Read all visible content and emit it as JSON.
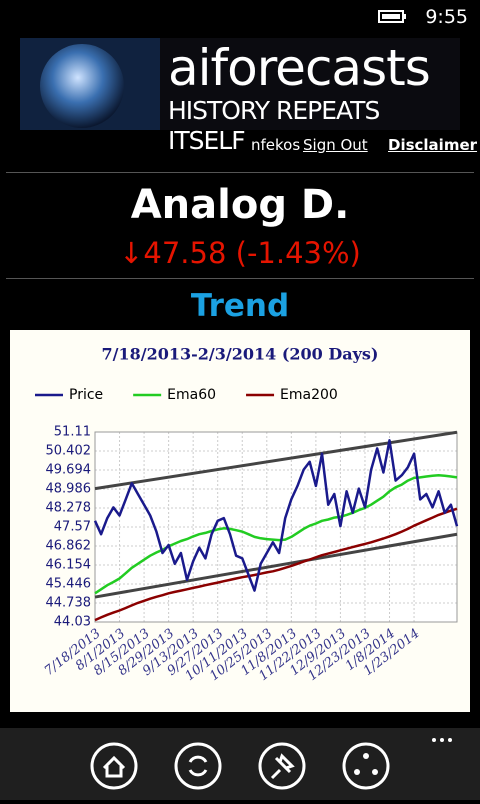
{
  "status_bar": {
    "time": "9:55"
  },
  "header": {
    "brand": "aiforecasts",
    "tagline": "HISTORY REPEATS ITSELF",
    "user": "nfekos",
    "sign_out": "Sign Out",
    "disclaimer": "Disclaimer"
  },
  "quote": {
    "name": "Analog D.",
    "change": "↓47.58 (-1.43%)"
  },
  "section": {
    "title": "Trend"
  },
  "chart_data": {
    "type": "line",
    "title": "7/18/2013-2/3/2014 (200 Days)",
    "categories": [
      "7/18/2013",
      null,
      null,
      null,
      "8/1/2013",
      null,
      null,
      null,
      "8/15/2013",
      null,
      null,
      null,
      "8/29/2013",
      null,
      null,
      null,
      "9/13/2013",
      null,
      null,
      null,
      "9/27/2013",
      null,
      null,
      null,
      "10/11/2013",
      null,
      null,
      null,
      "10/25/2013",
      null,
      null,
      null,
      "11/8/2013",
      null,
      null,
      null,
      "11/22/2013",
      null,
      null,
      null,
      "12/9/2013",
      null,
      null,
      null,
      "12/23/2013",
      null,
      null,
      null,
      "1/8/2014",
      null,
      null,
      null,
      "1/23/2014",
      null,
      null,
      null,
      null,
      null,
      null,
      null
    ],
    "series": [
      {
        "name": "Price",
        "color": "#1a1a8c",
        "values": [
          47.8,
          47.3,
          47.9,
          48.3,
          48.0,
          48.6,
          49.2,
          48.8,
          48.4,
          48.0,
          47.4,
          46.6,
          46.9,
          46.2,
          46.6,
          45.6,
          46.3,
          46.8,
          46.4,
          47.3,
          47.8,
          47.9,
          47.3,
          46.5,
          46.4,
          45.8,
          45.2,
          46.2,
          46.6,
          47.0,
          46.6,
          47.9,
          48.6,
          49.1,
          49.7,
          50.0,
          49.1,
          50.3,
          48.4,
          48.8,
          47.6,
          48.9,
          48.1,
          49.0,
          48.3,
          49.7,
          50.5,
          49.6,
          50.8,
          49.3,
          49.5,
          49.8,
          50.3,
          48.6,
          48.8,
          48.3,
          48.9,
          48.1,
          48.4,
          47.6
        ]
      },
      {
        "name": "Ema60",
        "color": "#22cc22",
        "values": [
          45.1,
          45.25,
          45.4,
          45.52,
          45.65,
          45.85,
          46.05,
          46.2,
          46.35,
          46.5,
          46.62,
          46.72,
          46.85,
          46.95,
          47.05,
          47.12,
          47.22,
          47.3,
          47.35,
          47.42,
          47.48,
          47.52,
          47.5,
          47.45,
          47.4,
          47.3,
          47.2,
          47.15,
          47.12,
          47.1,
          47.08,
          47.1,
          47.2,
          47.35,
          47.5,
          47.62,
          47.7,
          47.8,
          47.85,
          47.92,
          47.95,
          48.02,
          48.1,
          48.2,
          48.28,
          48.4,
          48.55,
          48.7,
          48.9,
          49.05,
          49.15,
          49.3,
          49.4,
          49.42,
          49.45,
          49.48,
          49.5,
          49.48,
          49.45,
          49.42
        ]
      },
      {
        "name": "Ema200",
        "color": "#8b0000",
        "values": [
          44.1,
          44.2,
          44.3,
          44.38,
          44.46,
          44.55,
          44.65,
          44.74,
          44.82,
          44.9,
          44.97,
          45.03,
          45.1,
          45.15,
          45.2,
          45.25,
          45.3,
          45.35,
          45.4,
          45.45,
          45.5,
          45.55,
          45.6,
          45.65,
          45.7,
          45.74,
          45.78,
          45.83,
          45.88,
          45.92,
          45.98,
          46.05,
          46.12,
          46.2,
          46.28,
          46.36,
          46.44,
          46.52,
          46.58,
          46.64,
          46.7,
          46.76,
          46.82,
          46.88,
          46.94,
          47.0,
          47.07,
          47.14,
          47.22,
          47.3,
          47.4,
          47.5,
          47.62,
          47.72,
          47.82,
          47.92,
          48.02,
          48.1,
          48.18,
          48.25
        ]
      }
    ],
    "trend_lines": [
      {
        "start": 49.0,
        "end": 51.1,
        "color": "#444444"
      },
      {
        "start": 44.96,
        "end": 47.3,
        "color": "#444444"
      }
    ],
    "ylim": [
      44.03,
      51.11
    ],
    "yticks": [
      44.03,
      44.738,
      45.446,
      46.154,
      46.862,
      47.57,
      48.278,
      48.986,
      49.694,
      50.402,
      51.11
    ],
    "grid": true,
    "legend": "top"
  }
}
